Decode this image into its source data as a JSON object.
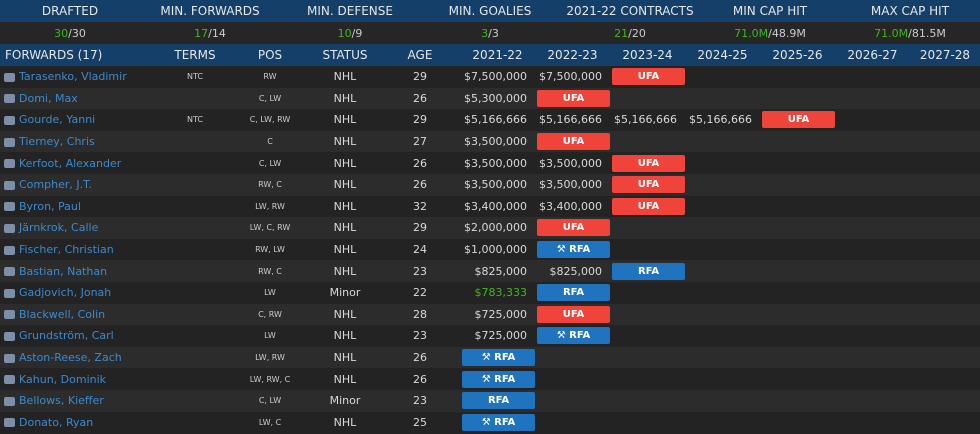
{
  "stats": [
    {
      "label": "DRAFTED",
      "have": "30",
      "req": "/30"
    },
    {
      "label": "MIN. FORWARDS",
      "have": "17",
      "req": "/14"
    },
    {
      "label": "MIN. DEFENSE",
      "have": "10",
      "req": "/9"
    },
    {
      "label": "MIN. GOALIES",
      "have": "3",
      "req": "/3"
    },
    {
      "label": "2021-22 CONTRACTS",
      "have": "21",
      "req": "/20"
    },
    {
      "label": "MIN CAP HIT",
      "have": "71.0M",
      "req": "/48.9M"
    },
    {
      "label": "MAX CAP HIT",
      "have": "71.0M",
      "req": "/81.5M"
    }
  ],
  "columns": [
    "FORWARDS (17)",
    "TERMS",
    "POS",
    "STATUS",
    "AGE",
    "2021-22",
    "2022-23",
    "2023-24",
    "2024-25",
    "2025-26",
    "2026-27",
    "2027-28"
  ],
  "colors": {
    "ufa": "#f0433a",
    "rfa": "#1f73bf",
    "header": "#143f68",
    "link": "#3a8ad0",
    "met": "#3fb618"
  },
  "players": [
    {
      "name": "Tarasenko, Vladimir",
      "terms": "NTC",
      "pos": "RW",
      "status": "NHL",
      "age": "29",
      "years": [
        "$7,500,000",
        "$7,500,000",
        "UFA",
        "",
        "",
        "",
        ""
      ]
    },
    {
      "name": "Domi, Max",
      "terms": "",
      "pos": "C, LW",
      "status": "NHL",
      "age": "26",
      "years": [
        "$5,300,000",
        "UFA",
        "",
        "",
        "",
        "",
        ""
      ]
    },
    {
      "name": "Gourde, Yanni",
      "terms": "NTC",
      "pos": "C, LW, RW",
      "status": "NHL",
      "age": "29",
      "years": [
        "$5,166,666",
        "$5,166,666",
        "$5,166,666",
        "$5,166,666",
        "UFA",
        "",
        ""
      ]
    },
    {
      "name": "Tierney, Chris",
      "terms": "",
      "pos": "C",
      "status": "NHL",
      "age": "27",
      "years": [
        "$3,500,000",
        "UFA",
        "",
        "",
        "",
        "",
        ""
      ]
    },
    {
      "name": "Kerfoot, Alexander",
      "terms": "",
      "pos": "C, LW",
      "status": "NHL",
      "age": "26",
      "years": [
        "$3,500,000",
        "$3,500,000",
        "UFA",
        "",
        "",
        "",
        ""
      ]
    },
    {
      "name": "Compher, J.T.",
      "terms": "",
      "pos": "RW, C",
      "status": "NHL",
      "age": "26",
      "years": [
        "$3,500,000",
        "$3,500,000",
        "UFA",
        "",
        "",
        "",
        ""
      ]
    },
    {
      "name": "Byron, Paul",
      "terms": "",
      "pos": "LW, RW",
      "status": "NHL",
      "age": "32",
      "years": [
        "$3,400,000",
        "$3,400,000",
        "UFA",
        "",
        "",
        "",
        ""
      ]
    },
    {
      "name": "Järnkrok, Calle",
      "terms": "",
      "pos": "LW, C, RW",
      "status": "NHL",
      "age": "29",
      "years": [
        "$2,000,000",
        "UFA",
        "",
        "",
        "",
        "",
        ""
      ]
    },
    {
      "name": "Fischer, Christian",
      "terms": "",
      "pos": "RW, LW",
      "status": "NHL",
      "age": "24",
      "years": [
        "$1,000,000",
        "⚒ RFA",
        "",
        "",
        "",
        "",
        ""
      ]
    },
    {
      "name": "Bastian, Nathan",
      "terms": "",
      "pos": "RW, C",
      "status": "NHL",
      "age": "23",
      "years": [
        "$825,000",
        "$825,000",
        "RFA",
        "",
        "",
        "",
        ""
      ]
    },
    {
      "name": "Gadjovich, Jonah",
      "terms": "",
      "pos": "LW",
      "status": "Minor",
      "age": "22",
      "years": [
        "$783,333",
        "RFA",
        "",
        "",
        "",
        "",
        ""
      ],
      "green": true
    },
    {
      "name": "Blackwell, Colin",
      "terms": "",
      "pos": "C, RW",
      "status": "NHL",
      "age": "28",
      "years": [
        "$725,000",
        "UFA",
        "",
        "",
        "",
        "",
        ""
      ]
    },
    {
      "name": "Grundström, Carl",
      "terms": "",
      "pos": "LW",
      "status": "NHL",
      "age": "23",
      "years": [
        "$725,000",
        "⚒ RFA",
        "",
        "",
        "",
        "",
        ""
      ]
    },
    {
      "name": "Aston-Reese, Zach",
      "terms": "",
      "pos": "LW, RW",
      "status": "NHL",
      "age": "26",
      "years": [
        "⚒ RFA",
        "",
        "",
        "",
        "",
        "",
        ""
      ]
    },
    {
      "name": "Kahun, Dominik",
      "terms": "",
      "pos": "LW, RW, C",
      "status": "NHL",
      "age": "26",
      "years": [
        "⚒ RFA",
        "",
        "",
        "",
        "",
        "",
        ""
      ]
    },
    {
      "name": "Bellows, Kieffer",
      "terms": "",
      "pos": "C, LW",
      "status": "Minor",
      "age": "23",
      "years": [
        "RFA",
        "",
        "",
        "",
        "",
        "",
        ""
      ]
    },
    {
      "name": "Donato, Ryan",
      "terms": "",
      "pos": "LW, C",
      "status": "NHL",
      "age": "25",
      "years": [
        "⚒ RFA",
        "",
        "",
        "",
        "",
        "",
        ""
      ]
    }
  ]
}
